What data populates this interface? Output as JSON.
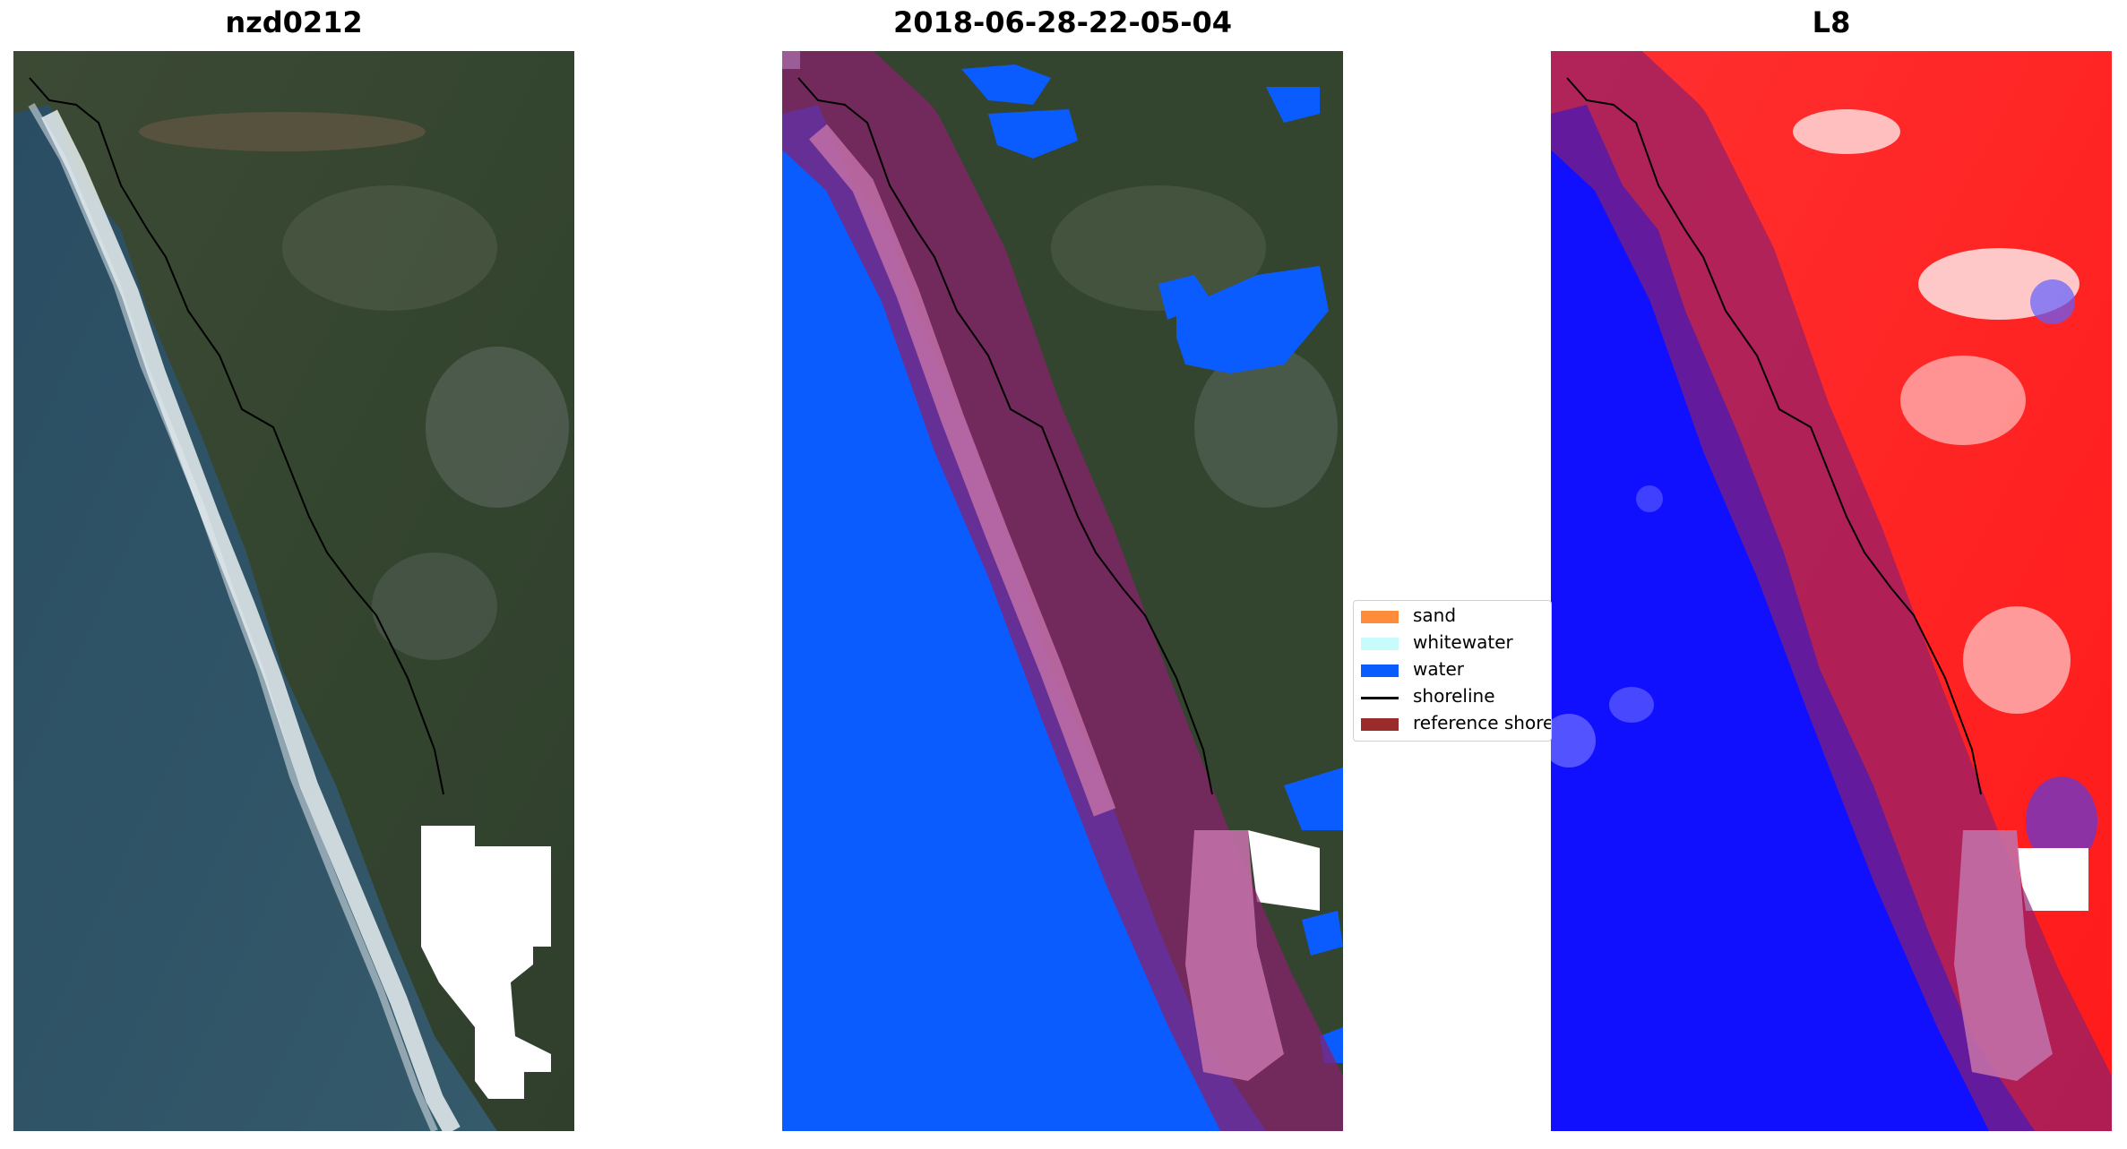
{
  "panels": [
    {
      "title": "nzd0212"
    },
    {
      "title": "2018-06-28-22-05-04"
    },
    {
      "title": "L8"
    }
  ],
  "legend": {
    "placement": "center",
    "items": [
      {
        "label": "sand",
        "color": "#ff8c3a",
        "kind": "patch"
      },
      {
        "label": "whitewater",
        "color": "#c8fcfc",
        "kind": "patch"
      },
      {
        "label": "water",
        "color": "#0a5cff",
        "kind": "patch"
      },
      {
        "label": "shoreline",
        "color": "#000000",
        "kind": "line"
      },
      {
        "label": "reference shoreline buffer",
        "color": "#9a2b2b",
        "kind": "patch"
      }
    ]
  },
  "colors": {
    "ocean_rgb": "#2f5366",
    "land_rgb": "#3b4c38",
    "surf": "#e8eef0",
    "classified_water": "#0a5cff",
    "buffer_overlay": "#b0205f",
    "index_water": "#1010ff",
    "index_land": "#ff2a2a"
  }
}
